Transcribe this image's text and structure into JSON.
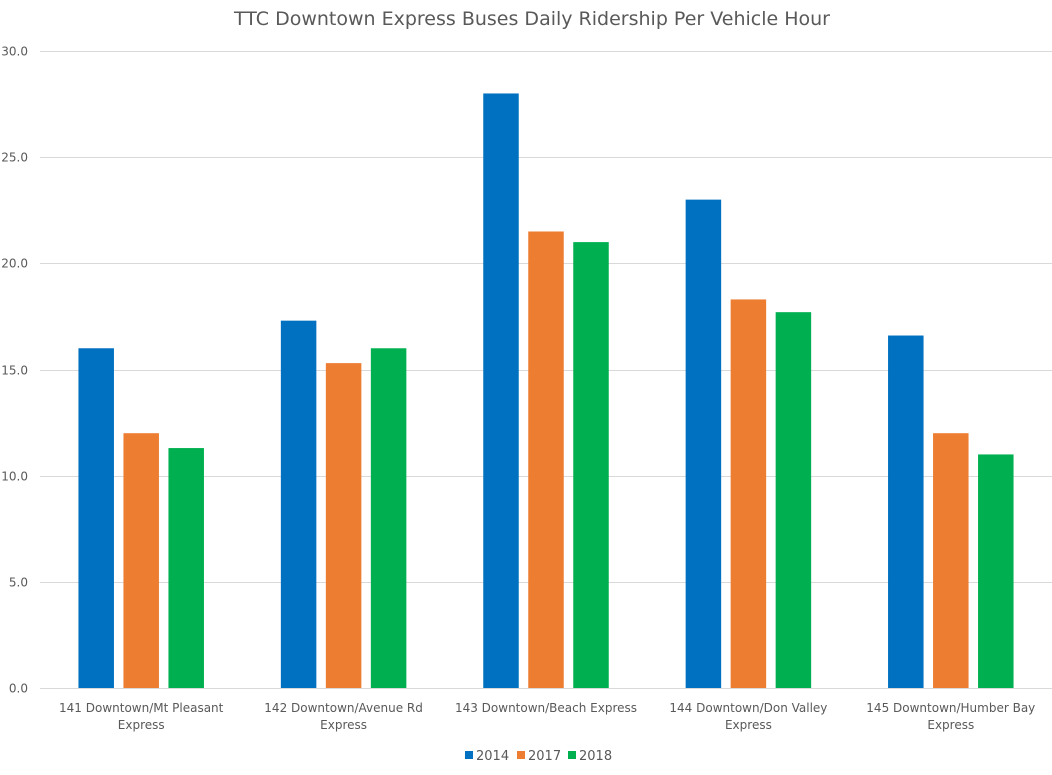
{
  "chart_data": {
    "type": "bar",
    "title": "TTC Downtown Express Buses Daily Ridership Per Vehicle Hour",
    "xlabel": "",
    "ylabel": "",
    "ylim": [
      0,
      30
    ],
    "ytick_step": 5,
    "ytick_labels": [
      "0.0",
      "5.0",
      "10.0",
      "15.0",
      "20.0",
      "25.0",
      "30.0"
    ],
    "grid": true,
    "legend_position": "bottom",
    "categories": [
      [
        "141 Downtown/Mt Pleasant",
        "Express"
      ],
      [
        "142 Downtown/Avenue Rd",
        "Express"
      ],
      [
        "143 Downtown/Beach Express"
      ],
      [
        "144 Downtown/Don Valley",
        "Express"
      ],
      [
        "145 Downtown/Humber Bay",
        "Express"
      ]
    ],
    "series": [
      {
        "name": "2014",
        "color": "#0070C0",
        "values": [
          16.0,
          17.3,
          28.0,
          23.0,
          16.6
        ]
      },
      {
        "name": "2017",
        "color": "#ED7D31",
        "values": [
          12.0,
          15.3,
          21.5,
          18.3,
          12.0
        ]
      },
      {
        "name": "2018",
        "color": "#00B050",
        "values": [
          11.3,
          16.0,
          21.0,
          17.7,
          11.0
        ]
      }
    ]
  }
}
